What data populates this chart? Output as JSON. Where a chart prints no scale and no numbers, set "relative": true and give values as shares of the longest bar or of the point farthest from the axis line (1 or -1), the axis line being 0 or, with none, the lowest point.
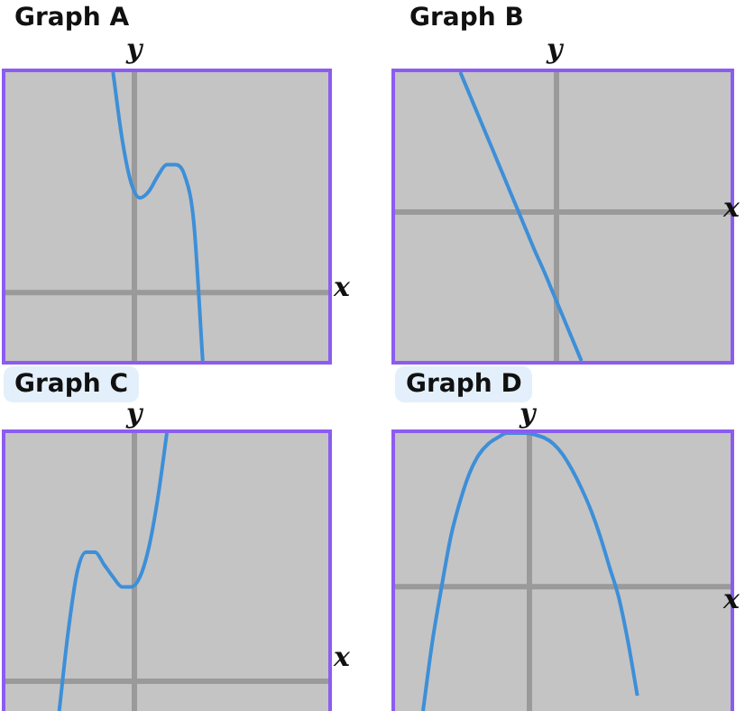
{
  "chart_data": [
    {
      "type": "line",
      "title": "Graph A",
      "xlabel": "x",
      "ylabel": "y",
      "relative": true,
      "legend": false,
      "tick_labels": false,
      "marker": "none",
      "color": "#3d8fd8",
      "categories": [
        null,
        null,
        null,
        null,
        null,
        null,
        null,
        null,
        null,
        null,
        null,
        null,
        null,
        null,
        null,
        null,
        null,
        null,
        null,
        null,
        null,
        null,
        null,
        null,
        null,
        null,
        null,
        null,
        null,
        null,
        null,
        null,
        null,
        null,
        null,
        null,
        null
      ],
      "values": [
        null,
        null,
        null,
        null,
        null,
        null,
        null,
        null,
        null,
        null,
        null,
        null,
        1,
        0.7,
        0.5,
        0.43,
        0.46,
        0.53,
        0.58,
        0.58,
        0.53,
        0.32,
        -0.31,
        null,
        null,
        null,
        null,
        null,
        null,
        null,
        null,
        null,
        null,
        null,
        null,
        null,
        null
      ]
    },
    {
      "type": "line",
      "title": "Graph B",
      "xlabel": "x",
      "ylabel": "y",
      "relative": true,
      "legend": false,
      "tick_labels": false,
      "marker": "none",
      "color": "#3d8fd8",
      "categories": [
        null,
        null,
        null,
        null,
        null,
        null,
        null,
        null,
        null,
        null,
        null,
        null,
        null,
        null,
        null,
        null,
        null,
        null,
        null,
        null,
        null,
        null,
        null,
        null,
        null,
        null,
        null,
        null,
        null,
        null,
        null,
        null,
        null,
        null,
        null,
        null,
        null
      ],
      "values": [
        null,
        null,
        null,
        null,
        null,
        null,
        null,
        0.94,
        0.79,
        0.64,
        0.49,
        0.34,
        0.19,
        0.04,
        -0.11,
        -0.26,
        -0.4,
        -0.55,
        -0.7,
        -0.85,
        -1,
        null,
        null,
        null,
        null,
        null,
        null,
        null,
        null,
        null,
        null,
        null,
        null,
        null,
        null,
        null,
        null
      ]
    },
    {
      "type": "line",
      "title": "Graph C",
      "xlabel": "x",
      "ylabel": "y",
      "relative": true,
      "legend": false,
      "tick_labels": false,
      "marker": "none",
      "color": "#3d8fd8",
      "categories": [
        null,
        null,
        null,
        null,
        null,
        null,
        null,
        null,
        null,
        null,
        null,
        null,
        null,
        null,
        null,
        null,
        null,
        null,
        null,
        null,
        null,
        null,
        null,
        null,
        null,
        null,
        null,
        null,
        null,
        null,
        null,
        null,
        null,
        null,
        null,
        null,
        null
      ],
      "values": [
        null,
        null,
        null,
        null,
        null,
        null,
        -0.12,
        0.2,
        0.44,
        0.52,
        0.52,
        0.47,
        0.42,
        0.38,
        0.38,
        0.42,
        0.54,
        0.74,
        1,
        null,
        null,
        null,
        null,
        null,
        null,
        null,
        null,
        null,
        null,
        null,
        null,
        null,
        null,
        null,
        null,
        null,
        null
      ]
    },
    {
      "type": "line",
      "title": "Graph D",
      "xlabel": "x",
      "ylabel": "y",
      "relative": true,
      "legend": false,
      "tick_labels": false,
      "marker": "none",
      "color": "#3d8fd8",
      "categories": [
        null,
        null,
        null,
        null,
        null,
        null,
        null,
        null,
        null,
        null,
        null,
        null,
        null,
        null,
        null,
        null,
        null,
        null,
        null,
        null,
        null,
        null,
        null,
        null,
        null,
        null,
        null,
        null,
        null,
        null,
        null,
        null,
        null,
        null,
        null,
        null,
        null
      ],
      "values": [
        null,
        null,
        null,
        -0.81,
        -0.36,
        0,
        0.33,
        0.56,
        0.74,
        0.86,
        0.93,
        0.97,
        1,
        1,
        1,
        0.99,
        0.97,
        0.93,
        0.86,
        0.76,
        0.64,
        0.5,
        0.33,
        0.13,
        -0.07,
        -0.36,
        -0.71,
        null,
        null,
        null,
        null,
        null,
        null,
        null,
        null,
        null,
        null
      ]
    }
  ]
}
